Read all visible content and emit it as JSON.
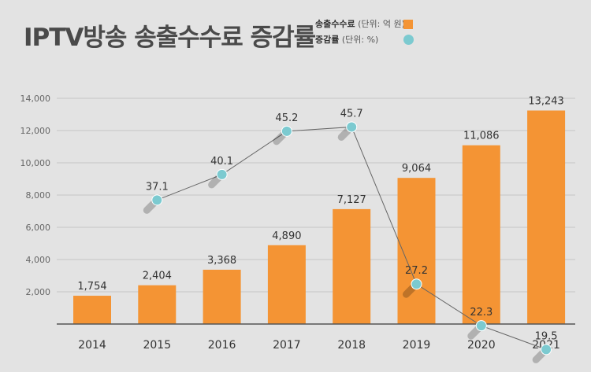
{
  "header": {
    "title": "IPTV방송 송출수수료 증감률"
  },
  "legend": [
    {
      "name": "송출수수료",
      "unit": "(단위: 억 원)",
      "icon": "square-swatch",
      "color": "#f49434"
    },
    {
      "name": "증감률",
      "unit": "(단위: %)",
      "icon": "circle-swatch",
      "color": "#7ccad0"
    }
  ],
  "chart_data": {
    "type": "bar",
    "categories": [
      "2014",
      "2015",
      "2016",
      "2017",
      "2018",
      "2019",
      "2020",
      "2021"
    ],
    "series": [
      {
        "name": "송출수수료",
        "type": "bar",
        "unit": "억 원",
        "color": "#f49434",
        "values": [
          1754,
          2404,
          3368,
          4890,
          7127,
          9064,
          11086,
          13243
        ],
        "labels": [
          "1,754",
          "2,404",
          "3,368",
          "4,890",
          "7,127",
          "9,064",
          "11,086",
          "13,243"
        ]
      },
      {
        "name": "증감률",
        "type": "line",
        "unit": "%",
        "color": "#7ccad0",
        "values": [
          null,
          37.1,
          40.1,
          45.2,
          45.7,
          27.2,
          22.3,
          19.5
        ],
        "labels": [
          "",
          "37.1",
          "40.1",
          "45.2",
          "45.7",
          "27.2",
          "22.3",
          "19.5"
        ]
      }
    ],
    "y_ticks": [
      "2,000",
      "4,000",
      "6,000",
      "8,000",
      "10,000",
      "12,000",
      "14,000"
    ],
    "y_tick_values": [
      2000,
      4000,
      6000,
      8000,
      10000,
      12000,
      14000
    ],
    "ylim": [
      0,
      14000
    ],
    "y2lim": [
      0,
      50
    ],
    "grid": true
  }
}
